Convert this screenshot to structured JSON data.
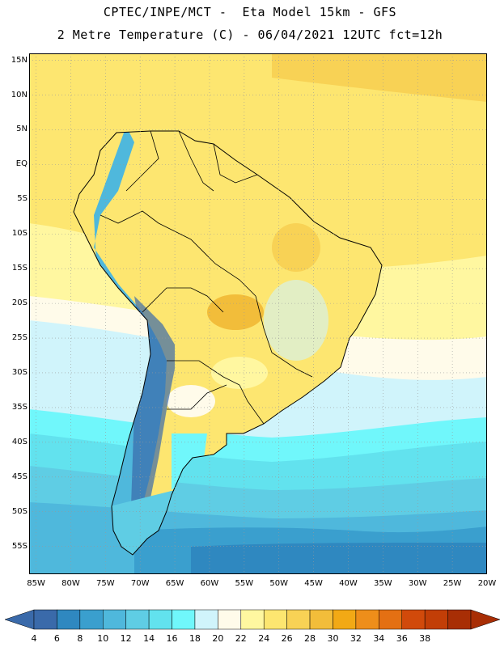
{
  "header": {
    "title_line1": "CPTEC/INPE/MCT -  Eta Model 15km - GFS",
    "title_line2": "2 Metre Temperature (C) - 06/04/2021 12UTC fct=12h"
  },
  "map": {
    "lat_labels": [
      "15N",
      "10N",
      "5N",
      "EQ",
      "5S",
      "10S",
      "15S",
      "20S",
      "25S",
      "30S",
      "35S",
      "40S",
      "45S",
      "50S",
      "55S"
    ],
    "lon_labels": [
      "85W",
      "80W",
      "75W",
      "70W",
      "65W",
      "60W",
      "55W",
      "50W",
      "45W",
      "40W",
      "35W",
      "30W",
      "25W",
      "20W"
    ],
    "lon_range": [
      -86,
      -20
    ],
    "lat_range": [
      16,
      -59
    ]
  },
  "legend": {
    "values": [
      4,
      6,
      8,
      10,
      12,
      14,
      16,
      18,
      20,
      22,
      24,
      26,
      28,
      30,
      32,
      34,
      36,
      38
    ],
    "labels": [
      "4",
      "6",
      "8",
      "10",
      "12",
      "14",
      "16",
      "18",
      "20",
      "22",
      "24",
      "26",
      "28",
      "30",
      "32",
      "34",
      "36",
      "38"
    ],
    "colors": [
      "#3a6aaa",
      "#2f88c0",
      "#3a9fce",
      "#4fb8dc",
      "#5fcde4",
      "#62e2ee",
      "#70f7fb",
      "#d0f4fb",
      "#fffbea",
      "#fff7a0",
      "#fde670",
      "#f8d255",
      "#f2bd3a",
      "#f2a915",
      "#ee8e1a",
      "#e47013",
      "#d14a0b",
      "#c23e07",
      "#a82e05"
    ],
    "low_color": "#3a6aaa",
    "high_color": "#a82e05"
  }
}
